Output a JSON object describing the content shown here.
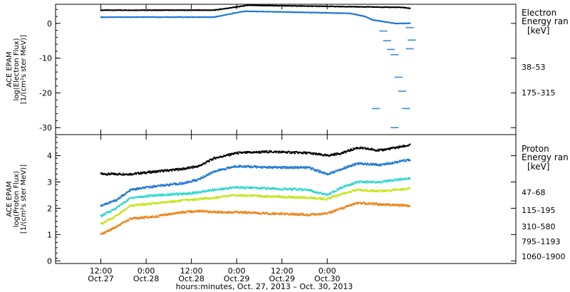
{
  "chart_data": [
    {
      "type": "scatter",
      "panel": "electron",
      "ylabel_lines": [
        "ACE EPAM",
        "log(Electron Flux)",
        "[1/(cm²s ster MeV)]"
      ],
      "legend_title_lines": [
        "Electron",
        "Energy ran"
      ],
      "legend_unit": "[keV]",
      "ylim": [
        -32,
        5.5
      ],
      "yticks": [
        0,
        -10,
        -20,
        -30
      ],
      "series": [
        {
          "name": "38–53",
          "color": "#000000",
          "points": [
            [
              0,
              3.8
            ],
            [
              30,
              3.8
            ],
            [
              39,
              5.2
            ],
            [
              80,
              4.6
            ],
            [
              82,
              4.3
            ]
          ]
        },
        {
          "name": "175–315",
          "color": "#1f77d2",
          "points": [
            [
              0,
              1.8
            ],
            [
              30,
              1.8
            ],
            [
              38,
              3.5
            ],
            [
              66,
              2.9
            ],
            [
              70,
              2.0
            ],
            [
              72,
              1.0
            ],
            [
              78,
              0.0
            ],
            [
              82,
              0.0
            ]
          ],
          "dropouts": [
            [
              74,
              -2.2
            ],
            [
              75,
              -5.0
            ],
            [
              76,
              -7.5
            ],
            [
              77,
              -9.0
            ],
            [
              78,
              -15.5
            ],
            [
              79,
              -19.5
            ],
            [
              72,
              -24.5
            ],
            [
              77,
              -30.0
            ],
            [
              80,
              -24.5
            ],
            [
              81,
              -1.2
            ],
            [
              81.5,
              -4.8
            ],
            [
              81,
              -7.3
            ]
          ]
        }
      ]
    },
    {
      "type": "scatter",
      "panel": "proton",
      "ylabel_lines": [
        "ACE EPAM",
        "log(Proton Flux)",
        "[1/(cm²s ster MeV)]"
      ],
      "legend_title_lines": [
        "Proton",
        "Energy ran"
      ],
      "legend_unit": "[keV]",
      "ylim": [
        -0.1,
        4.8
      ],
      "yticks": [
        0,
        1,
        2,
        3,
        4
      ],
      "series": [
        {
          "name": "47–68",
          "color": "#000000",
          "points": [
            [
              0,
              3.3
            ],
            [
              8,
              3.3
            ],
            [
              15,
              3.4
            ],
            [
              22,
              3.5
            ],
            [
              26,
              3.6
            ],
            [
              30,
              3.9
            ],
            [
              36,
              4.1
            ],
            [
              45,
              4.15
            ],
            [
              55,
              4.1
            ],
            [
              60,
              4.0
            ],
            [
              64,
              4.1
            ],
            [
              68,
              4.3
            ],
            [
              74,
              4.2
            ],
            [
              82,
              4.4
            ]
          ]
        },
        {
          "name": "115–195",
          "color": "#1f77d2",
          "points": [
            [
              0,
              2.1
            ],
            [
              4,
              2.3
            ],
            [
              8,
              2.7
            ],
            [
              15,
              2.85
            ],
            [
              22,
              2.95
            ],
            [
              26,
              3.1
            ],
            [
              30,
              3.4
            ],
            [
              36,
              3.6
            ],
            [
              45,
              3.55
            ],
            [
              55,
              3.55
            ],
            [
              60,
              3.3
            ],
            [
              64,
              3.5
            ],
            [
              68,
              3.7
            ],
            [
              74,
              3.65
            ],
            [
              82,
              3.85
            ]
          ]
        },
        {
          "name": "310–580",
          "color": "#2fd6cf",
          "points": [
            [
              0,
              1.7
            ],
            [
              4,
              2.0
            ],
            [
              8,
              2.4
            ],
            [
              15,
              2.5
            ],
            [
              22,
              2.55
            ],
            [
              26,
              2.6
            ],
            [
              30,
              2.7
            ],
            [
              36,
              2.8
            ],
            [
              45,
              2.75
            ],
            [
              55,
              2.7
            ],
            [
              60,
              2.5
            ],
            [
              64,
              2.8
            ],
            [
              68,
              3.0
            ],
            [
              74,
              3.0
            ],
            [
              82,
              3.15
            ]
          ]
        },
        {
          "name": "795–1193",
          "color": "#c6e51c",
          "points": [
            [
              0,
              1.4
            ],
            [
              4,
              1.7
            ],
            [
              8,
              2.1
            ],
            [
              15,
              2.2
            ],
            [
              22,
              2.3
            ],
            [
              26,
              2.35
            ],
            [
              30,
              2.4
            ],
            [
              36,
              2.5
            ],
            [
              45,
              2.45
            ],
            [
              55,
              2.4
            ],
            [
              60,
              2.35
            ],
            [
              64,
              2.55
            ],
            [
              68,
              2.7
            ],
            [
              74,
              2.65
            ],
            [
              82,
              2.75
            ]
          ]
        },
        {
          "name": "1060–1900",
          "color": "#ee8217",
          "points": [
            [
              0,
              1.0
            ],
            [
              4,
              1.3
            ],
            [
              8,
              1.6
            ],
            [
              15,
              1.7
            ],
            [
              22,
              1.85
            ],
            [
              26,
              1.9
            ],
            [
              30,
              1.85
            ],
            [
              36,
              1.85
            ],
            [
              45,
              1.8
            ],
            [
              55,
              1.75
            ],
            [
              60,
              1.8
            ],
            [
              64,
              2.0
            ],
            [
              68,
              2.2
            ],
            [
              74,
              2.15
            ],
            [
              82,
              2.1
            ]
          ]
        }
      ]
    }
  ],
  "xaxis": {
    "xlim": [
      -12,
      110
    ],
    "ticks": [
      {
        "x": 0,
        "time": "12:00",
        "date": "Oct.27"
      },
      {
        "x": 12,
        "time": "0:00",
        "date": "Oct.28"
      },
      {
        "x": 24,
        "time": "12:00",
        "date": "Oct.28"
      },
      {
        "x": 36,
        "time": "0:00",
        "date": "Oct.29"
      },
      {
        "x": 48,
        "time": "12:00",
        "date": "Oct.29"
      },
      {
        "x": 60,
        "time": "0:00",
        "date": "Oct.30"
      }
    ],
    "xlabel": "hours:minutes, Oct. 27, 2013 – Oct. 30, 2013"
  }
}
